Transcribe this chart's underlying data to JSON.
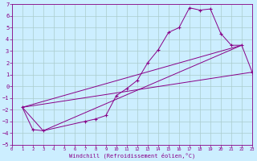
{
  "xlabel": "Windchill (Refroidissement éolien,°C)",
  "bg_color": "#cceeff",
  "grid_color": "#aacccc",
  "line_color": "#880088",
  "xlim": [
    0,
    23
  ],
  "ylim": [
    -5,
    7
  ],
  "xticks": [
    0,
    1,
    2,
    3,
    4,
    5,
    6,
    7,
    8,
    9,
    10,
    11,
    12,
    13,
    14,
    15,
    16,
    17,
    18,
    19,
    20,
    21,
    22,
    23
  ],
  "yticks": [
    -5,
    -4,
    -3,
    -2,
    -1,
    0,
    1,
    2,
    3,
    4,
    5,
    6,
    7
  ],
  "curve_x": [
    1,
    2,
    3,
    7,
    8,
    9,
    10,
    11,
    12,
    13,
    14,
    15,
    16,
    17,
    18,
    19,
    20,
    21,
    22,
    23
  ],
  "curve_y": [
    -1.8,
    -3.7,
    -3.8,
    -3.0,
    -2.8,
    -2.5,
    -0.8,
    -0.2,
    0.5,
    2.0,
    3.1,
    4.6,
    5.0,
    6.7,
    6.5,
    6.6,
    4.5,
    3.5,
    3.5,
    1.2
  ],
  "line1_x": [
    1,
    23
  ],
  "line1_y": [
    -1.8,
    1.2
  ],
  "line2_x": [
    1,
    22
  ],
  "line2_y": [
    -1.8,
    3.5
  ],
  "line3_x": [
    1,
    3,
    22
  ],
  "line3_y": [
    -1.8,
    -3.8,
    3.5
  ]
}
